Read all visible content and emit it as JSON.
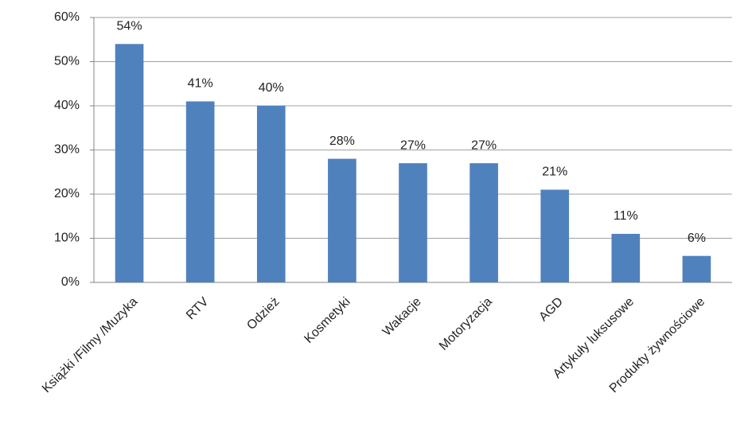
{
  "chart_data": {
    "type": "bar",
    "categories": [
      "Książki /Filmy /Muzyka",
      "RTV",
      "Odzież",
      "Kosmetyki",
      "Wakacje",
      "Motoryzacja",
      "AGD",
      "Artykuły luksusowe",
      "Produkty żywnościowe"
    ],
    "values": [
      54,
      41,
      40,
      28,
      27,
      27,
      21,
      11,
      6
    ],
    "value_labels": [
      "54%",
      "41%",
      "40%",
      "28%",
      "27%",
      "27%",
      "21%",
      "11%",
      "6%"
    ],
    "color": "#4f81bd",
    "ylim": [
      0,
      60
    ],
    "yticks": [
      {
        "value": 0,
        "label": "0%"
      },
      {
        "value": 10,
        "label": "10%"
      },
      {
        "value": 20,
        "label": "20%"
      },
      {
        "value": 30,
        "label": "30%"
      },
      {
        "value": 40,
        "label": "40%"
      },
      {
        "value": 50,
        "label": "50%"
      },
      {
        "value": 60,
        "label": "60%"
      }
    ],
    "grid": true
  }
}
